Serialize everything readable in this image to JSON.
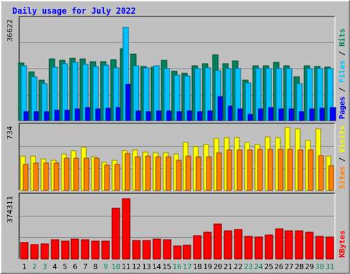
{
  "chart_data": {
    "type": "bar",
    "title": "Daily usage for July 2022",
    "categories": [
      "1",
      "2",
      "3",
      "4",
      "5",
      "6",
      "7",
      "8",
      "9",
      "10",
      "11",
      "12",
      "13",
      "14",
      "15",
      "16",
      "17",
      "18",
      "19",
      "20",
      "21",
      "22",
      "23",
      "24",
      "25",
      "26",
      "27",
      "28",
      "29",
      "30",
      "31"
    ],
    "weekend_days": [
      "2",
      "3",
      "9",
      "10",
      "16",
      "17",
      "23",
      "24",
      "30",
      "31"
    ],
    "panels": [
      {
        "name": "hits-files-pages",
        "ymax_label": "36622",
        "ymax": 36622,
        "series": [
          {
            "name": "Hits",
            "color": "#00805c",
            "values": [
              20900,
              17500,
              14700,
              22300,
              21700,
              22600,
              22300,
              21300,
              21400,
              22000,
              26000,
              24100,
              19600,
              19300,
              21700,
              17800,
              17100,
              19700,
              20500,
              23800,
              20600,
              21600,
              14700,
              19900,
              19700,
              21000,
              19900,
              15800,
              19700,
              19600,
              19300
            ]
          },
          {
            "name": "Files",
            "color": "#00c0ff",
            "values": [
              19700,
              15800,
              13300,
              19400,
              20500,
              21000,
              20200,
              19500,
              20000,
              19000,
              33600,
              19900,
              19000,
              19800,
              18700,
              16300,
              16000,
              18700,
              19000,
              18000,
              18900,
              18800,
              13600,
              18900,
              18800,
              18900,
              18800,
              13300,
              18800,
              18700,
              18800
            ]
          },
          {
            "name": "Pages",
            "color": "#0000ff",
            "values": [
              3300,
              3100,
              3100,
              3600,
              3800,
              4300,
              4700,
              4300,
              4500,
              4700,
              13200,
              3500,
              3100,
              3400,
              3400,
              3300,
              3400,
              3300,
              3400,
              8600,
              5100,
              4200,
              2300,
              4100,
              4700,
              4300,
              4300,
              3300,
              4300,
              4500,
              4600
            ]
          }
        ],
        "legend": [
          "Pages",
          "Files",
          "Hits"
        ]
      },
      {
        "name": "visits-sites",
        "ymax_label": "734",
        "ymax": 734,
        "series": [
          {
            "name": "Visits",
            "color": "#ffff00",
            "values": [
              390,
              390,
              360,
              340,
              410,
              450,
              490,
              380,
              320,
              340,
              450,
              460,
              440,
              430,
              430,
              410,
              550,
              500,
              520,
              590,
              600,
              600,
              550,
              520,
              610,
              600,
              720,
              700,
              570,
              700,
              390
            ]
          },
          {
            "name": "Sites",
            "color": "#ff8000",
            "values": [
              300,
              310,
              310,
              310,
              370,
              370,
              370,
              370,
              290,
              300,
              420,
              380,
              390,
              380,
              380,
              340,
              390,
              380,
              380,
              430,
              460,
              460,
              460,
              470,
              470,
              470,
              470,
              460,
              460,
              400,
              280
            ]
          }
        ],
        "legend": [
          "Sites",
          "Visits"
        ]
      },
      {
        "name": "kbytes",
        "ymax_label": "374311",
        "ymax": 374311,
        "series": [
          {
            "name": "KBytes",
            "color": "#ff0000",
            "values": [
              99000,
              86000,
              91000,
              115000,
              106000,
              118000,
              115000,
              107000,
              104000,
              303000,
              357000,
              108000,
              108000,
              117000,
              113000,
              77000,
              80000,
              139000,
              158000,
              209000,
              167000,
              176000,
              136000,
              132000,
              143000,
              181000,
              167000,
              167000,
              159000,
              135000,
              131000
            ]
          }
        ],
        "legend": [
          "KBytes"
        ]
      }
    ]
  }
}
